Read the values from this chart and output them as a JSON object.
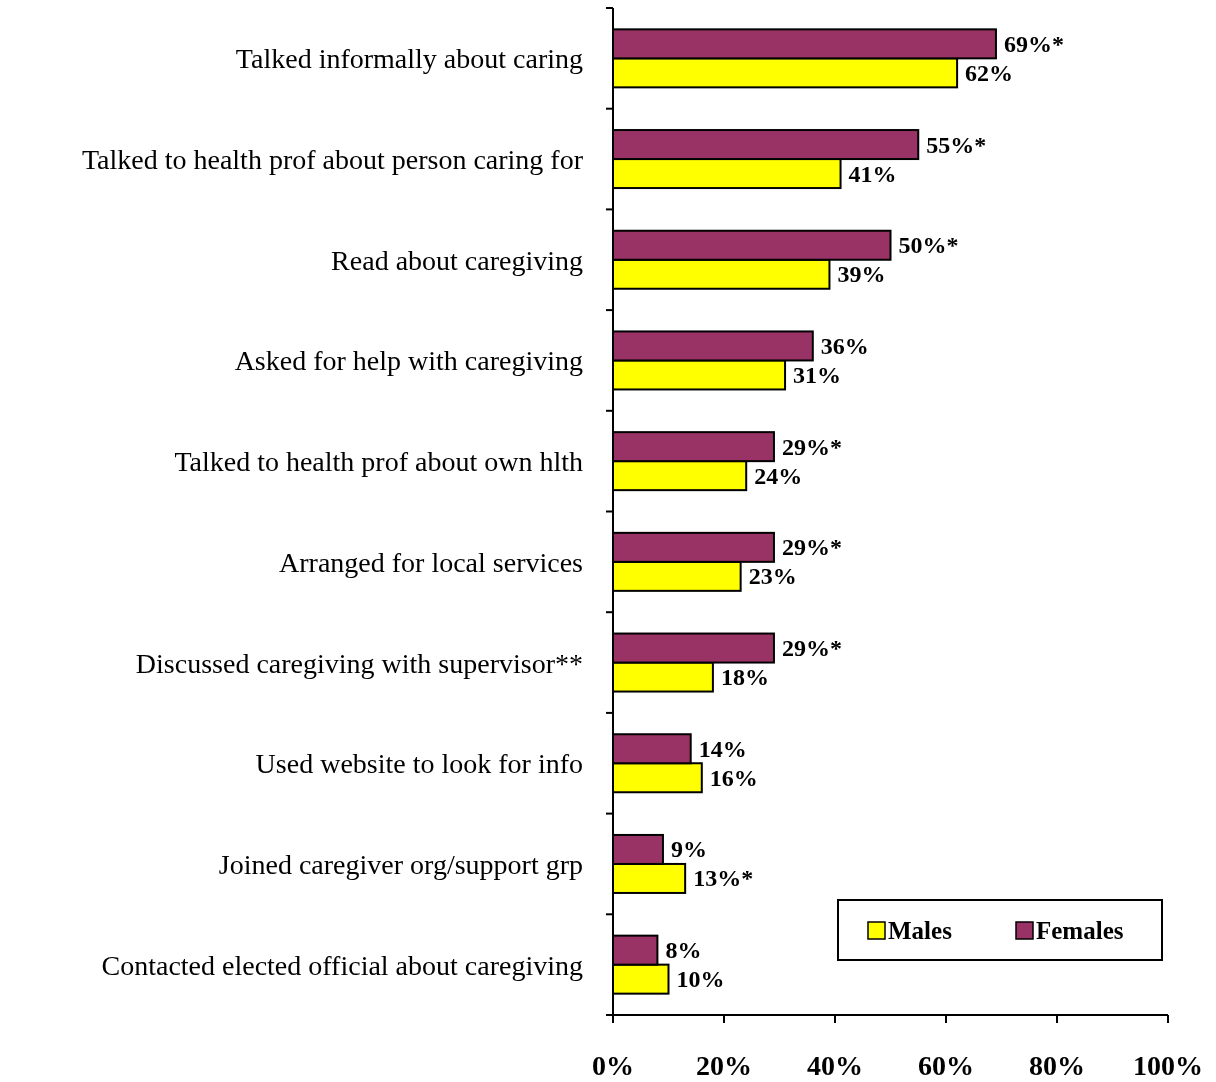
{
  "chart_data": {
    "type": "bar",
    "orientation": "horizontal",
    "categories": [
      "Talked informally about caring",
      "Talked to health prof about person caring for",
      "Read about caregiving",
      "Asked for help with caregiving",
      "Talked to health prof about own hlth",
      "Arranged for local services",
      "Discussed caregiving with supervisor**",
      "Used website to look for info",
      "Joined caregiver org/support grp",
      "Contacted elected official about caregiving"
    ],
    "series": [
      {
        "name": "Males",
        "color": "#ffff00",
        "values": [
          62,
          41,
          39,
          31,
          24,
          23,
          18,
          16,
          13,
          10
        ],
        "value_labels": [
          "62%",
          "41%",
          "39%",
          "31%",
          "24%",
          "23%",
          "18%",
          "16%",
          "13%*",
          "10%"
        ]
      },
      {
        "name": "Females",
        "color": "#993366",
        "values": [
          69,
          55,
          50,
          36,
          29,
          29,
          29,
          14,
          9,
          8
        ],
        "value_labels": [
          "69%*",
          "55%*",
          "50%*",
          "36%",
          "29%*",
          "29%*",
          "29%*",
          "14%",
          "9%",
          "8%"
        ]
      }
    ],
    "xlim": [
      0,
      100
    ],
    "xticks": [
      {
        "value": 0,
        "label": "0%"
      },
      {
        "value": 20,
        "label": "20%"
      },
      {
        "value": 40,
        "label": "40%"
      },
      {
        "value": 60,
        "label": "60%"
      },
      {
        "value": 80,
        "label": "80%"
      },
      {
        "value": 100,
        "label": "100%"
      }
    ],
    "legend": "bottom right",
    "grid": false
  }
}
